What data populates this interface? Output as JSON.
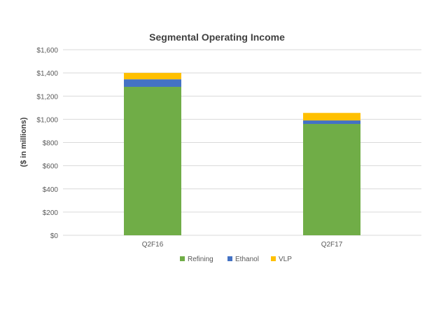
{
  "chart_data": {
    "type": "bar",
    "stacked": true,
    "title": "Segmental Operating Income",
    "xlabel": "",
    "ylabel": "($ in millions)",
    "categories": [
      "Q2F16",
      "Q2F17"
    ],
    "series": [
      {
        "name": "Refining",
        "color": "#70ad47",
        "values": [
          1280,
          960
        ]
      },
      {
        "name": "Ethanol",
        "color": "#4472c4",
        "values": [
          65,
          30
        ]
      },
      {
        "name": "VLP",
        "color": "#ffc000",
        "values": [
          55,
          65
        ]
      }
    ],
    "ylim": [
      0,
      1600
    ],
    "yticks": [
      0,
      200,
      400,
      600,
      800,
      1000,
      1200,
      1400,
      1600
    ],
    "ytick_labels": [
      "$0",
      "$200",
      "$400",
      "$600",
      "$800",
      "$1,000",
      "$1,200",
      "$1,400",
      "$1,600"
    ],
    "grid": true,
    "legend": "bottom"
  }
}
